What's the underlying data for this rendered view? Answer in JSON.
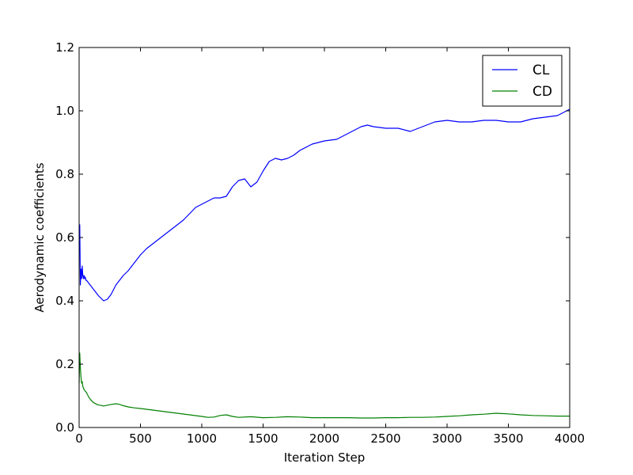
{
  "chart_data": {
    "type": "line",
    "title": "",
    "xlabel": "Iteration Step",
    "ylabel": "Aerodynamic coefficients",
    "xlim": [
      0,
      4000
    ],
    "ylim": [
      0.0,
      1.2
    ],
    "xticks": [
      0,
      500,
      1000,
      1500,
      2000,
      2500,
      3000,
      3500,
      4000
    ],
    "xtick_labels": [
      "0",
      "500",
      "1000",
      "1500",
      "2000",
      "2500",
      "3000",
      "3500",
      "4000"
    ],
    "yticks": [
      0.0,
      0.2,
      0.4,
      0.6,
      0.8,
      1.0,
      1.2
    ],
    "ytick_labels": [
      "0.0",
      "0.2",
      "0.4",
      "0.6",
      "0.8",
      "1.0",
      "1.2"
    ],
    "grid": false,
    "legend_position": "top-right",
    "series": [
      {
        "name": "CL",
        "color": "#0000ff",
        "x": [
          0,
          5,
          10,
          15,
          20,
          25,
          30,
          35,
          40,
          45,
          50,
          55,
          60,
          70,
          80,
          100,
          130,
          160,
          200,
          230,
          260,
          300,
          330,
          360,
          400,
          450,
          500,
          550,
          600,
          700,
          800,
          850,
          900,
          950,
          1000,
          1050,
          1100,
          1150,
          1200,
          1250,
          1300,
          1350,
          1400,
          1450,
          1500,
          1550,
          1600,
          1650,
          1700,
          1750,
          1800,
          1900,
          2000,
          2100,
          2200,
          2300,
          2350,
          2400,
          2500,
          2600,
          2700,
          2800,
          2900,
          3000,
          3100,
          3200,
          3300,
          3400,
          3500,
          3600,
          3700,
          3800,
          3900,
          4000
        ],
        "y": [
          0.58,
          0.64,
          0.45,
          0.5,
          0.47,
          0.51,
          0.48,
          0.47,
          0.48,
          0.47,
          0.475,
          0.465,
          0.465,
          0.46,
          0.455,
          0.445,
          0.43,
          0.415,
          0.4,
          0.405,
          0.42,
          0.45,
          0.465,
          0.48,
          0.495,
          0.52,
          0.545,
          0.565,
          0.58,
          0.61,
          0.64,
          0.655,
          0.675,
          0.695,
          0.705,
          0.715,
          0.725,
          0.725,
          0.73,
          0.76,
          0.78,
          0.785,
          0.76,
          0.775,
          0.81,
          0.84,
          0.85,
          0.845,
          0.85,
          0.86,
          0.875,
          0.895,
          0.905,
          0.91,
          0.93,
          0.95,
          0.955,
          0.95,
          0.945,
          0.945,
          0.935,
          0.95,
          0.965,
          0.97,
          0.965,
          0.965,
          0.97,
          0.97,
          0.965,
          0.965,
          0.975,
          0.98,
          0.985,
          1.005
        ]
      },
      {
        "name": "CD",
        "color": "#008000",
        "x": [
          0,
          5,
          10,
          15,
          20,
          25,
          30,
          40,
          60,
          80,
          100,
          120,
          150,
          200,
          250,
          300,
          330,
          350,
          400,
          450,
          500,
          600,
          700,
          800,
          900,
          1000,
          1050,
          1100,
          1150,
          1200,
          1250,
          1300,
          1400,
          1500,
          1600,
          1700,
          1800,
          1900,
          2000,
          2100,
          2200,
          2300,
          2400,
          2500,
          2600,
          2700,
          2800,
          2900,
          3000,
          3100,
          3200,
          3300,
          3400,
          3500,
          3600,
          3700,
          3800,
          3900,
          4000
        ],
        "y": [
          0.14,
          0.235,
          0.19,
          0.16,
          0.14,
          0.145,
          0.13,
          0.12,
          0.11,
          0.095,
          0.085,
          0.078,
          0.072,
          0.068,
          0.072,
          0.075,
          0.073,
          0.07,
          0.065,
          0.062,
          0.06,
          0.055,
          0.05,
          0.045,
          0.04,
          0.035,
          0.032,
          0.033,
          0.038,
          0.04,
          0.035,
          0.032,
          0.034,
          0.031,
          0.032,
          0.034,
          0.033,
          0.031,
          0.031,
          0.031,
          0.031,
          0.03,
          0.03,
          0.031,
          0.031,
          0.032,
          0.032,
          0.033,
          0.035,
          0.037,
          0.04,
          0.042,
          0.045,
          0.043,
          0.04,
          0.038,
          0.037,
          0.036,
          0.036
        ]
      }
    ]
  }
}
